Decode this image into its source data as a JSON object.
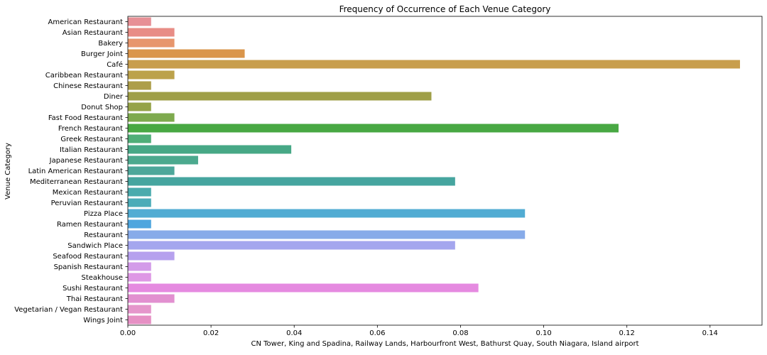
{
  "chart_data": {
    "type": "bar",
    "orientation": "horizontal",
    "title": "Frequency of Occurrence of Each Venue Category",
    "xlabel": "CN Tower, King and Spadina, Railway Lands, Harbourfront West, Bathurst Quay, South Niagara, Island airport",
    "ylabel": "Venue Category",
    "xlim": [
      0,
      0.1525
    ],
    "xticks": [
      0.0,
      0.02,
      0.04,
      0.06,
      0.08,
      0.1,
      0.12,
      0.14
    ],
    "xtick_labels": [
      "0.00",
      "0.02",
      "0.04",
      "0.06",
      "0.08",
      "0.10",
      "0.12",
      "0.14"
    ],
    "grid": false,
    "categories": [
      "American Restaurant",
      "Asian Restaurant",
      "Bakery",
      "Burger Joint",
      "Café",
      "Caribbean Restaurant",
      "Chinese Restaurant",
      "Diner",
      "Donut Shop",
      "Fast Food Restaurant",
      "French Restaurant",
      "Greek Restaurant",
      "Italian Restaurant",
      "Japanese Restaurant",
      "Latin American Restaurant",
      "Mediterranean Restaurant",
      "Mexican Restaurant",
      "Peruvian Restaurant",
      "Pizza Place",
      "Ramen Restaurant",
      "Restaurant",
      "Sandwich Place",
      "Seafood Restaurant",
      "Spanish Restaurant",
      "Steakhouse",
      "Sushi Restaurant",
      "Thai Restaurant",
      "Vegetarian / Vegan Restaurant",
      "Wings Joint"
    ],
    "values": [
      0.0056,
      0.0112,
      0.0112,
      0.0281,
      0.1472,
      0.0112,
      0.0056,
      0.073,
      0.0056,
      0.0112,
      0.118,
      0.0056,
      0.0393,
      0.0169,
      0.0112,
      0.0787,
      0.0056,
      0.0056,
      0.0955,
      0.0056,
      0.0955,
      0.0787,
      0.0112,
      0.0056,
      0.0056,
      0.0843,
      0.0112,
      0.0056,
      0.0056
    ],
    "colors": [
      "#e79096",
      "#e88d86",
      "#e7966d",
      "#da954a",
      "#c89e4d",
      "#bca24b",
      "#ad9e4a",
      "#9f9f48",
      "#95a348",
      "#7eaa4e",
      "#48a843",
      "#4fae78",
      "#47a886",
      "#4ca98e",
      "#4da79a",
      "#46a59f",
      "#4aabad",
      "#4bacb8",
      "#51acd3",
      "#4ea6de",
      "#87abe9",
      "#a4a6ee",
      "#b6a1ee",
      "#d39be9",
      "#de98e5",
      "#e58ae0",
      "#e290d0",
      "#e596cb",
      "#e690c4"
    ]
  }
}
